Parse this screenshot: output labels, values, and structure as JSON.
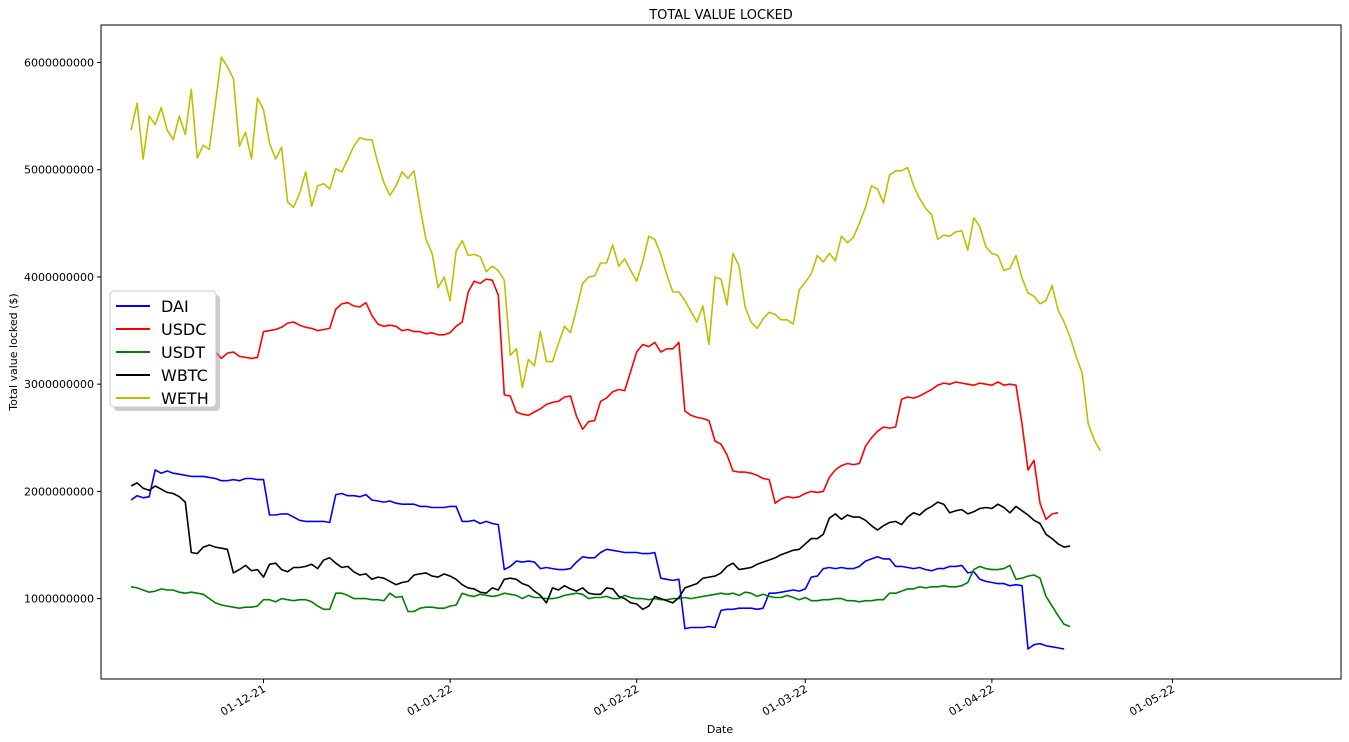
{
  "chart_data": {
    "type": "line",
    "title": "TOTAL VALUE LOCKED",
    "xlabel": "Date",
    "ylabel": "Total value locked ($)",
    "x_start": "2021-11-09",
    "x_range": [
      "2021-11-04",
      "2022-05-29"
    ],
    "ylim": [
      250000000,
      6350000000
    ],
    "x_ticks": [
      {
        "date": "2021-12-01",
        "label": "01-12-21"
      },
      {
        "date": "2022-01-01",
        "label": "01-01-22"
      },
      {
        "date": "2022-02-01",
        "label": "01-02-22"
      },
      {
        "date": "2022-03-01",
        "label": "01-03-22"
      },
      {
        "date": "2022-04-01",
        "label": "01-04-22"
      },
      {
        "date": "2022-05-01",
        "label": "01-05-22"
      }
    ],
    "y_ticks": [
      1000000000,
      2000000000,
      3000000000,
      4000000000,
      5000000000,
      6000000000
    ],
    "y_tick_labels": [
      "1000000000",
      "2000000000",
      "3000000000",
      "4000000000",
      "5000000000",
      "6000000000"
    ],
    "grid": false,
    "legend_position": "center-left",
    "series": [
      {
        "name": "DAI",
        "color": "#0000ff",
        "values": [
          1920000000,
          1960000000,
          1940000000,
          1950000000,
          2200000000,
          2170000000,
          2190000000,
          2170000000,
          2160000000,
          2150000000,
          2140000000,
          2140000000,
          2140000000,
          2130000000,
          2120000000,
          2100000000,
          2100000000,
          2110000000,
          2100000000,
          2120000000,
          2120000000,
          2110000000,
          2110000000,
          1780000000,
          1780000000,
          1790000000,
          1790000000,
          1760000000,
          1730000000,
          1720000000,
          1720000000,
          1720000000,
          1720000000,
          1710000000,
          1970000000,
          1980000000,
          1960000000,
          1960000000,
          1950000000,
          1970000000,
          1920000000,
          1910000000,
          1900000000,
          1910000000,
          1890000000,
          1880000000,
          1880000000,
          1880000000,
          1860000000,
          1860000000,
          1850000000,
          1850000000,
          1850000000,
          1860000000,
          1860000000,
          1720000000,
          1720000000,
          1730000000,
          1700000000,
          1720000000,
          1700000000,
          1690000000,
          1270000000,
          1300000000,
          1350000000,
          1340000000,
          1350000000,
          1340000000,
          1280000000,
          1290000000,
          1280000000,
          1270000000,
          1270000000,
          1280000000,
          1340000000,
          1390000000,
          1380000000,
          1380000000,
          1430000000,
          1460000000,
          1450000000,
          1440000000,
          1430000000,
          1430000000,
          1430000000,
          1420000000,
          1420000000,
          1430000000,
          1190000000,
          1180000000,
          1170000000,
          1180000000,
          720000000,
          730000000,
          730000000,
          730000000,
          740000000,
          730000000,
          890000000,
          900000000,
          900000000,
          910000000,
          910000000,
          910000000,
          900000000,
          910000000,
          1050000000,
          1050000000,
          1060000000,
          1070000000,
          1080000000,
          1070000000,
          1090000000,
          1200000000,
          1210000000,
          1280000000,
          1290000000,
          1280000000,
          1290000000,
          1280000000,
          1280000000,
          1300000000,
          1350000000,
          1370000000,
          1390000000,
          1370000000,
          1370000000,
          1300000000,
          1300000000,
          1290000000,
          1280000000,
          1290000000,
          1270000000,
          1260000000,
          1280000000,
          1280000000,
          1300000000,
          1300000000,
          1310000000,
          1240000000,
          1250000000,
          1180000000,
          1160000000,
          1150000000,
          1140000000,
          1140000000,
          1120000000,
          1130000000,
          1120000000,
          530000000,
          570000000,
          580000000,
          560000000,
          550000000,
          540000000,
          530000000
        ]
      },
      {
        "name": "USDC",
        "color": "#ff0000",
        "values": [
          3280000000,
          3250000000,
          3300000000,
          3290000000,
          3260000000,
          3240000000,
          3200000000,
          3190000000,
          3280000000,
          3340000000,
          3310000000,
          3330000000,
          3360000000,
          3340000000,
          3300000000,
          3240000000,
          3290000000,
          3300000000,
          3260000000,
          3250000000,
          3240000000,
          3250000000,
          3490000000,
          3500000000,
          3510000000,
          3530000000,
          3570000000,
          3580000000,
          3550000000,
          3530000000,
          3520000000,
          3500000000,
          3510000000,
          3520000000,
          3700000000,
          3750000000,
          3760000000,
          3730000000,
          3720000000,
          3760000000,
          3640000000,
          3560000000,
          3540000000,
          3550000000,
          3540000000,
          3500000000,
          3510000000,
          3490000000,
          3490000000,
          3470000000,
          3480000000,
          3460000000,
          3460000000,
          3480000000,
          3540000000,
          3580000000,
          3860000000,
          3960000000,
          3940000000,
          3980000000,
          3970000000,
          3830000000,
          2900000000,
          2890000000,
          2740000000,
          2720000000,
          2710000000,
          2740000000,
          2770000000,
          2810000000,
          2830000000,
          2840000000,
          2880000000,
          2890000000,
          2700000000,
          2580000000,
          2650000000,
          2660000000,
          2840000000,
          2870000000,
          2930000000,
          2950000000,
          2940000000,
          3120000000,
          3300000000,
          3370000000,
          3350000000,
          3390000000,
          3300000000,
          3330000000,
          3330000000,
          3390000000,
          2750000000,
          2710000000,
          2690000000,
          2680000000,
          2660000000,
          2470000000,
          2440000000,
          2340000000,
          2190000000,
          2180000000,
          2180000000,
          2170000000,
          2150000000,
          2120000000,
          2110000000,
          1890000000,
          1930000000,
          1950000000,
          1940000000,
          1950000000,
          1980000000,
          2000000000,
          1990000000,
          2000000000,
          2130000000,
          2200000000,
          2240000000,
          2260000000,
          2250000000,
          2260000000,
          2420000000,
          2500000000,
          2560000000,
          2600000000,
          2590000000,
          2600000000,
          2860000000,
          2880000000,
          2870000000,
          2890000000,
          2920000000,
          2950000000,
          2990000000,
          3010000000,
          3000000000,
          3020000000,
          3010000000,
          3000000000,
          2990000000,
          3010000000,
          3000000000,
          2990000000,
          3020000000,
          2990000000,
          3000000000,
          2990000000,
          2630000000,
          2200000000,
          2290000000,
          1890000000,
          1740000000,
          1790000000,
          1800000000
        ]
      },
      {
        "name": "USDT",
        "color": "#008000",
        "values": [
          1110000000,
          1100000000,
          1080000000,
          1060000000,
          1070000000,
          1090000000,
          1080000000,
          1080000000,
          1060000000,
          1050000000,
          1060000000,
          1050000000,
          1040000000,
          1000000000,
          960000000,
          940000000,
          930000000,
          920000000,
          910000000,
          920000000,
          920000000,
          930000000,
          990000000,
          990000000,
          970000000,
          1000000000,
          990000000,
          980000000,
          990000000,
          990000000,
          970000000,
          930000000,
          900000000,
          900000000,
          1050000000,
          1050000000,
          1030000000,
          1000000000,
          1000000000,
          1000000000,
          990000000,
          990000000,
          980000000,
          1050000000,
          1010000000,
          1020000000,
          880000000,
          880000000,
          910000000,
          920000000,
          920000000,
          910000000,
          910000000,
          930000000,
          940000000,
          1050000000,
          1030000000,
          1020000000,
          1040000000,
          1030000000,
          1020000000,
          1030000000,
          1050000000,
          1040000000,
          1030000000,
          1000000000,
          1030000000,
          1010000000,
          1010000000,
          1000000000,
          1000000000,
          1010000000,
          1030000000,
          1040000000,
          1050000000,
          1040000000,
          1000000000,
          1010000000,
          1010000000,
          1020000000,
          1000000000,
          1000000000,
          1030000000,
          1010000000,
          1000000000,
          1000000000,
          990000000,
          1000000000,
          990000000,
          990000000,
          1000000000,
          1000000000,
          1010000000,
          1000000000,
          1010000000,
          1020000000,
          1030000000,
          1040000000,
          1050000000,
          1040000000,
          1050000000,
          1030000000,
          1060000000,
          1050000000,
          1020000000,
          1040000000,
          1020000000,
          1010000000,
          1010000000,
          1030000000,
          1010000000,
          990000000,
          1010000000,
          980000000,
          980000000,
          990000000,
          990000000,
          1000000000,
          1000000000,
          980000000,
          980000000,
          970000000,
          980000000,
          980000000,
          990000000,
          990000000,
          1050000000,
          1050000000,
          1070000000,
          1090000000,
          1090000000,
          1110000000,
          1100000000,
          1110000000,
          1110000000,
          1120000000,
          1110000000,
          1110000000,
          1120000000,
          1150000000,
          1270000000,
          1300000000,
          1280000000,
          1270000000,
          1270000000,
          1280000000,
          1310000000,
          1180000000,
          1190000000,
          1210000000,
          1220000000,
          1190000000,
          1020000000,
          930000000,
          840000000,
          760000000,
          740000000
        ]
      },
      {
        "name": "WBTC",
        "color": "#000000",
        "values": [
          2050000000,
          2080000000,
          2030000000,
          2010000000,
          2050000000,
          2020000000,
          1990000000,
          1980000000,
          1950000000,
          1900000000,
          1430000000,
          1420000000,
          1480000000,
          1500000000,
          1480000000,
          1470000000,
          1460000000,
          1240000000,
          1270000000,
          1310000000,
          1260000000,
          1270000000,
          1200000000,
          1320000000,
          1330000000,
          1270000000,
          1250000000,
          1290000000,
          1290000000,
          1300000000,
          1320000000,
          1280000000,
          1360000000,
          1380000000,
          1330000000,
          1290000000,
          1300000000,
          1250000000,
          1220000000,
          1230000000,
          1180000000,
          1200000000,
          1190000000,
          1160000000,
          1130000000,
          1150000000,
          1160000000,
          1220000000,
          1230000000,
          1240000000,
          1210000000,
          1200000000,
          1230000000,
          1210000000,
          1180000000,
          1130000000,
          1100000000,
          1090000000,
          1060000000,
          1050000000,
          1100000000,
          1080000000,
          1180000000,
          1190000000,
          1180000000,
          1140000000,
          1120000000,
          1070000000,
          1030000000,
          960000000,
          1100000000,
          1080000000,
          1120000000,
          1090000000,
          1070000000,
          1100000000,
          1050000000,
          1040000000,
          1040000000,
          1100000000,
          1090000000,
          1020000000,
          1000000000,
          960000000,
          950000000,
          900000000,
          930000000,
          1020000000,
          1000000000,
          980000000,
          960000000,
          1010000000,
          1100000000,
          1120000000,
          1140000000,
          1190000000,
          1200000000,
          1210000000,
          1240000000,
          1300000000,
          1330000000,
          1270000000,
          1280000000,
          1290000000,
          1320000000,
          1340000000,
          1360000000,
          1380000000,
          1410000000,
          1430000000,
          1450000000,
          1460000000,
          1510000000,
          1560000000,
          1560000000,
          1600000000,
          1750000000,
          1790000000,
          1740000000,
          1780000000,
          1760000000,
          1760000000,
          1730000000,
          1680000000,
          1640000000,
          1680000000,
          1710000000,
          1720000000,
          1690000000,
          1760000000,
          1800000000,
          1780000000,
          1830000000,
          1860000000,
          1900000000,
          1880000000,
          1800000000,
          1820000000,
          1830000000,
          1790000000,
          1810000000,
          1840000000,
          1850000000,
          1840000000,
          1880000000,
          1850000000,
          1800000000,
          1860000000,
          1820000000,
          1780000000,
          1730000000,
          1700000000,
          1600000000,
          1560000000,
          1510000000,
          1480000000,
          1490000000
        ]
      },
      {
        "name": "WETH",
        "color": "#bfbf00",
        "values": [
          5370000000,
          5620000000,
          5100000000,
          5500000000,
          5420000000,
          5580000000,
          5370000000,
          5280000000,
          5500000000,
          5330000000,
          5750000000,
          5110000000,
          5230000000,
          5190000000,
          5620000000,
          6050000000,
          5960000000,
          5850000000,
          5220000000,
          5350000000,
          5100000000,
          5670000000,
          5560000000,
          5250000000,
          5100000000,
          5210000000,
          4700000000,
          4650000000,
          4780000000,
          4980000000,
          4660000000,
          4850000000,
          4870000000,
          4820000000,
          5010000000,
          4980000000,
          5100000000,
          5220000000,
          5300000000,
          5280000000,
          5280000000,
          5060000000,
          4880000000,
          4760000000,
          4850000000,
          4980000000,
          4920000000,
          4990000000,
          4650000000,
          4350000000,
          4220000000,
          3900000000,
          4000000000,
          3780000000,
          4240000000,
          4340000000,
          4200000000,
          4210000000,
          4190000000,
          4050000000,
          4100000000,
          4060000000,
          3970000000,
          3270000000,
          3330000000,
          2970000000,
          3230000000,
          3170000000,
          3490000000,
          3210000000,
          3210000000,
          3380000000,
          3540000000,
          3480000000,
          3700000000,
          3940000000,
          4000000000,
          4010000000,
          4130000000,
          4130000000,
          4300000000,
          4100000000,
          4170000000,
          4060000000,
          3960000000,
          4140000000,
          4380000000,
          4350000000,
          4210000000,
          4020000000,
          3860000000,
          3860000000,
          3780000000,
          3680000000,
          3580000000,
          3730000000,
          3370000000,
          4000000000,
          3980000000,
          3740000000,
          4220000000,
          4100000000,
          3720000000,
          3580000000,
          3520000000,
          3610000000,
          3670000000,
          3650000000,
          3600000000,
          3600000000,
          3560000000,
          3880000000,
          3950000000,
          4030000000,
          4200000000,
          4140000000,
          4220000000,
          4150000000,
          4380000000,
          4320000000,
          4370000000,
          4500000000,
          4650000000,
          4850000000,
          4820000000,
          4690000000,
          4950000000,
          4990000000,
          4990000000,
          5020000000,
          4850000000,
          4730000000,
          4640000000,
          4580000000,
          4350000000,
          4390000000,
          4380000000,
          4420000000,
          4430000000,
          4250000000,
          4550000000,
          4470000000,
          4280000000,
          4220000000,
          4200000000,
          4060000000,
          4080000000,
          4200000000,
          3990000000,
          3850000000,
          3820000000,
          3750000000,
          3780000000,
          3920000000,
          3690000000,
          3580000000,
          3440000000,
          3260000000,
          3100000000,
          2630000000,
          2480000000,
          2380000000
        ]
      }
    ]
  }
}
